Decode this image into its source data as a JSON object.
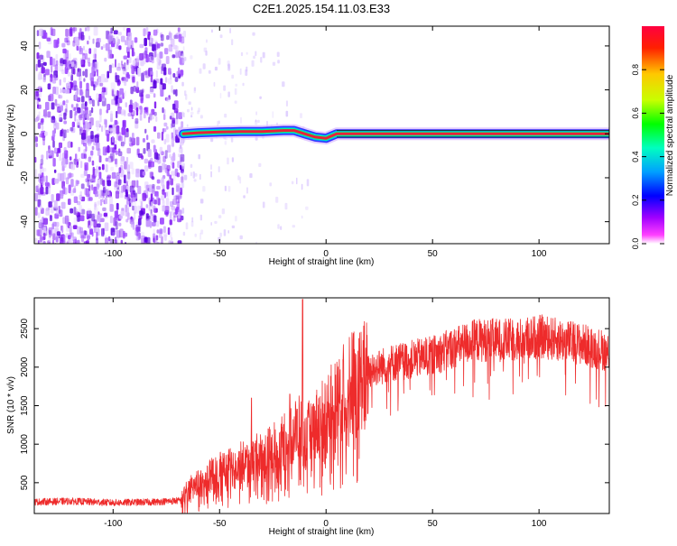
{
  "page": {
    "title": "C2E1.2025.154.11.03.E33"
  },
  "colors": {
    "snr_line": "#ee2b2b",
    "ridge_core": "#e8213a",
    "colorbar_stops": [
      "#ffffff",
      "#ff00ff",
      "#6a00ff",
      "#0000ff",
      "#00a0ff",
      "#00ffc0",
      "#00ff00",
      "#c8ff00",
      "#ffc800",
      "#ff0000"
    ]
  },
  "chart_data": [
    {
      "type": "heatmap",
      "title": "C2E1.2025.154.11.03.E33",
      "xlabel": "Height of straight line (km)",
      "ylabel": "Frequency (Hz)",
      "xlim": [
        -137,
        133
      ],
      "ylim": [
        -50,
        49
      ],
      "x_ticks": [
        -100,
        -50,
        0,
        50,
        100
      ],
      "y_ticks": [
        -40,
        -20,
        0,
        20,
        40
      ],
      "x_tick_labels": [
        "-100",
        "-50",
        "0",
        "50",
        "100"
      ],
      "y_tick_labels": [
        "-40",
        "-20",
        "0",
        "20",
        "40"
      ],
      "noise_region_x": [
        -137,
        -68
      ],
      "ridge": {
        "x": [
          -67,
          -60,
          -50,
          -40,
          -30,
          -20,
          -15,
          -10,
          -5,
          0,
          5,
          20,
          50,
          100,
          133
        ],
        "freq": [
          0,
          0.5,
          0.8,
          1,
          1,
          1.5,
          1.5,
          0,
          -1.5,
          -2,
          0,
          0,
          0,
          0,
          0
        ]
      },
      "colorbar": {
        "label": "Normalized spectral amplitude",
        "range": [
          0,
          1
        ],
        "ticks": [
          0,
          0.2,
          0.4,
          0.6,
          0.8
        ],
        "tick_labels": [
          "0.0",
          "0.2",
          "0.4",
          "0.6",
          "0.8"
        ]
      },
      "grid": false
    },
    {
      "type": "line",
      "xlabel": "Height of straight line (km)",
      "ylabel": "SNR (10 * v/v)",
      "xlim": [
        -137,
        133
      ],
      "ylim": [
        100,
        2900
      ],
      "x_ticks": [
        -100,
        -50,
        0,
        50,
        100
      ],
      "y_ticks": [
        500,
        1000,
        1500,
        2000,
        2500
      ],
      "x_tick_labels": [
        "-100",
        "-50",
        "0",
        "50",
        "100"
      ],
      "y_tick_labels": [
        "500",
        "1000",
        "1500",
        "2000",
        "2500"
      ],
      "series": [
        {
          "x": [
            -137,
            -120,
            -100,
            -80,
            -68,
            -65,
            -60,
            -50,
            -40,
            -30,
            -20,
            -15,
            -11,
            -10,
            -8,
            -5,
            0,
            5,
            10,
            20,
            30,
            40,
            50,
            60,
            70,
            80,
            90,
            100,
            110,
            120,
            133
          ],
          "y": [
            250,
            260,
            240,
            250,
            270,
            400,
            500,
            650,
            750,
            850,
            1000,
            1150,
            1200,
            1000,
            1150,
            1250,
            1400,
            1550,
            1750,
            1950,
            2050,
            2100,
            2150,
            2250,
            2350,
            2350,
            2350,
            2400,
            2350,
            2300,
            2200
          ],
          "spikes": [
            {
              "x": -11,
              "y": 2880
            },
            {
              "x": 8,
              "y": 2100
            },
            {
              "x": -35,
              "y": 1600
            },
            {
              "x": -17,
              "y": 1650
            }
          ]
        }
      ],
      "grid": false
    }
  ]
}
